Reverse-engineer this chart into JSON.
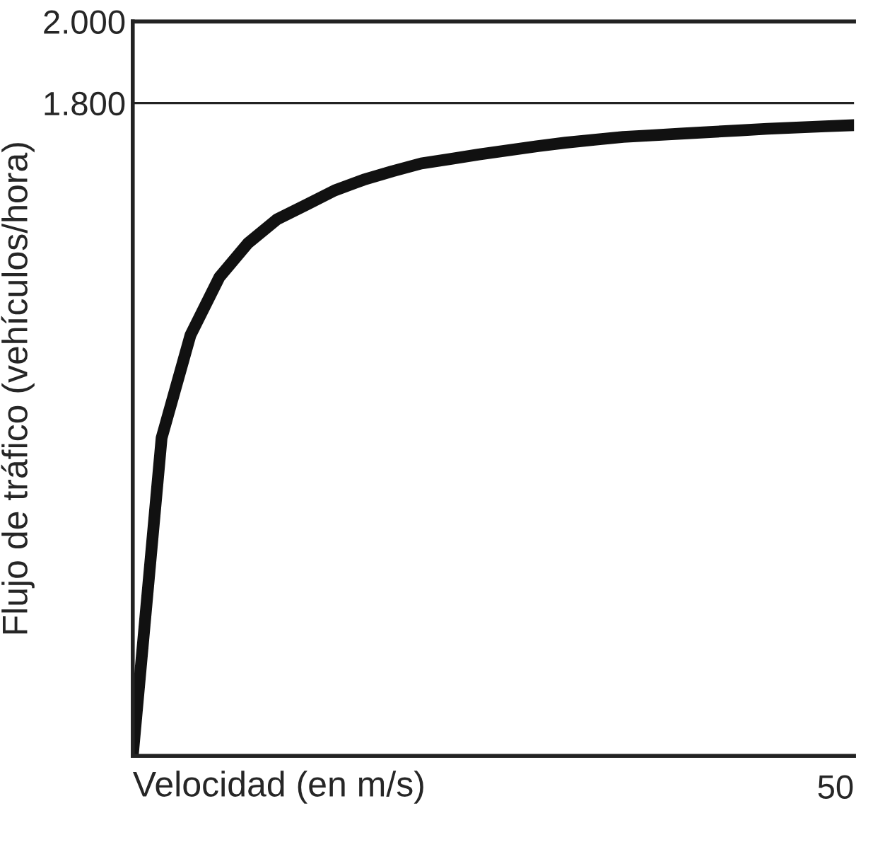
{
  "chart_data": {
    "type": "line",
    "xlabel": "Velocidad (en m/s)",
    "ylabel": "Flujo de tráfico (vehículos/hora)",
    "ylim": [
      200,
      2000
    ],
    "yticks": [
      {
        "value": 1800,
        "label": "1.800"
      },
      {
        "value": 2000,
        "label": "2.000"
      }
    ],
    "grid": "y",
    "marker": "none",
    "line_style": "solid",
    "annotations": [
      "50"
    ],
    "categories": [
      null,
      null,
      null,
      null,
      null,
      null,
      null,
      null,
      null,
      null,
      null,
      null,
      null,
      null,
      null,
      null,
      null,
      null,
      null,
      null,
      null,
      null,
      null,
      null,
      null,
      null
    ],
    "series": [
      {
        "color": "#111111",
        "values": [
          200,
          979,
          1231,
          1373,
          1457,
          1515,
          1550,
          1586,
          1612,
          1633,
          1652,
          1663,
          1674,
          1684,
          1694,
          1703,
          1710,
          1717,
          1721,
          1725,
          1729,
          1733,
          1737,
          1740,
          1743,
          1746
        ]
      }
    ]
  }
}
